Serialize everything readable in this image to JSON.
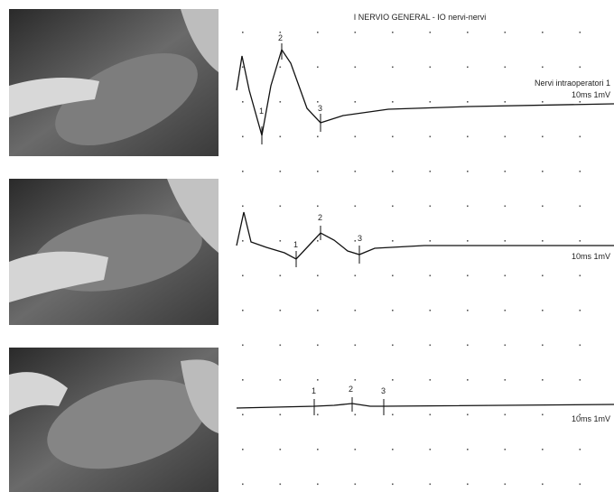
{
  "title": "I NERVIO GENERAL - IO nervi-nervi",
  "traces": [
    {
      "label": "Nervi intraoperatori  1",
      "scale": "10ms 1mV",
      "markers": [
        "1",
        "2",
        "3"
      ]
    },
    {
      "scale": "10ms 1mV",
      "markers": [
        "1",
        "2",
        "3"
      ]
    },
    {
      "scale": "10ms 1mV",
      "markers": [
        "1",
        "2",
        "3"
      ]
    }
  ]
}
